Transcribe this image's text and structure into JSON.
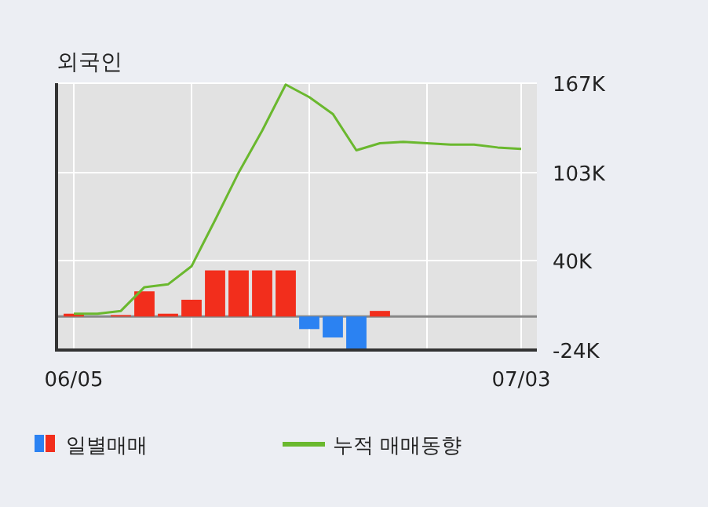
{
  "chart_data": {
    "type": "bar",
    "title": "외국인",
    "categories": [
      "06/05",
      null,
      null,
      null,
      null,
      null,
      null,
      null,
      null,
      null,
      null,
      null,
      null,
      null,
      null,
      null,
      null,
      null,
      null,
      "07/03"
    ],
    "series": [
      {
        "name": "일별매매",
        "values": [
          2000,
          0,
          1000,
          18000,
          2000,
          12000,
          33000,
          33000,
          33000,
          33000,
          -9000,
          -15000,
          -24000,
          4000,
          0,
          0,
          0,
          0,
          0,
          0
        ],
        "colors": [
          "#f22e1c",
          "#f22e1c",
          "#f22e1c",
          "#f22e1c",
          "#f22e1c",
          "#f22e1c",
          "#f22e1c",
          "#f22e1c",
          "#f22e1c",
          "#f22e1c",
          "#2b82f2",
          "#2b82f2",
          "#2b82f2",
          "#f22e1c",
          "#2b82f2",
          "#2b82f2",
          "#2b82f2",
          "#2b82f2",
          "#2b82f2",
          "#2b82f2"
        ]
      },
      {
        "name": "누적 매매동향",
        "type": "line",
        "color": "#6ab82e",
        "values": [
          2000,
          2000,
          4000,
          21000,
          23000,
          36000,
          69000,
          103000,
          133000,
          166000,
          157000,
          145000,
          119000,
          124000,
          125000,
          124000,
          123000,
          123000,
          121000,
          120000
        ]
      }
    ],
    "ylim": [
      -24000,
      167000
    ],
    "yticks": [
      {
        "value": -24000,
        "label": "-24K"
      },
      {
        "value": 40000,
        "label": "40K"
      },
      {
        "value": 103000,
        "label": "103K"
      },
      {
        "value": 167000,
        "label": "167K"
      }
    ],
    "grid": true,
    "legend": "bottom"
  }
}
